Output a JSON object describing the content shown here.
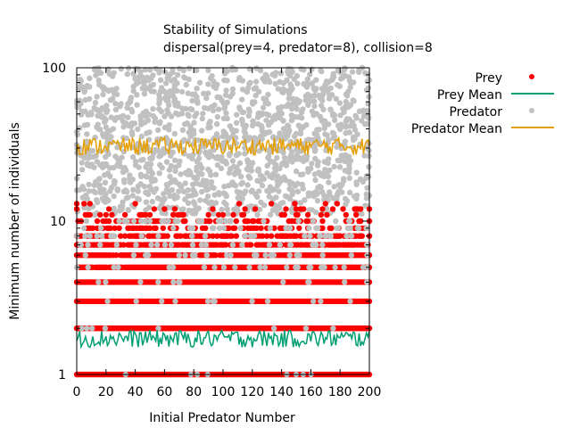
{
  "chart_data": {
    "type": "scatter",
    "title": "Stability of Simulations",
    "subtitle": "dispersal(prey=4, predator=8), collision=8",
    "xlabel": "Initial Predator Number",
    "ylabel": "Minimum number of individuals",
    "xlim": [
      0,
      200
    ],
    "ylim": [
      1,
      100
    ],
    "yscale": "log",
    "grid": false,
    "legend_position": "top-right outside",
    "x_ticks": [
      "0",
      "20",
      "40",
      "60",
      "80",
      "100",
      "120",
      "140",
      "160",
      "180",
      "200"
    ],
    "y_ticks": [
      "1",
      "10",
      "100"
    ],
    "series": [
      {
        "name": "Prey",
        "kind": "points",
        "color": "#ff0000",
        "levels": [
          1,
          2,
          3,
          4,
          5,
          6,
          7,
          8,
          9,
          10,
          11,
          12,
          13
        ],
        "level_presence": [
          1,
          1,
          1,
          1,
          0.92,
          0.88,
          0.78,
          0.55,
          0.35,
          0.28,
          0.15,
          0.08,
          0.03
        ]
      },
      {
        "name": "Prey Mean",
        "kind": "line",
        "color": "#009e73",
        "mean": 1.7,
        "low": 1.5,
        "high": 1.95
      },
      {
        "name": "Predator",
        "kind": "points",
        "color": "#c0c0c0",
        "band_low": 11,
        "band_high": 100,
        "sparse_levels": [
          1,
          2,
          3,
          4,
          5,
          6,
          7,
          8,
          9,
          10
        ]
      },
      {
        "name": "Predator Mean",
        "kind": "line",
        "color": "#e69f00",
        "mean": 31,
        "low": 27,
        "high": 35
      }
    ]
  }
}
